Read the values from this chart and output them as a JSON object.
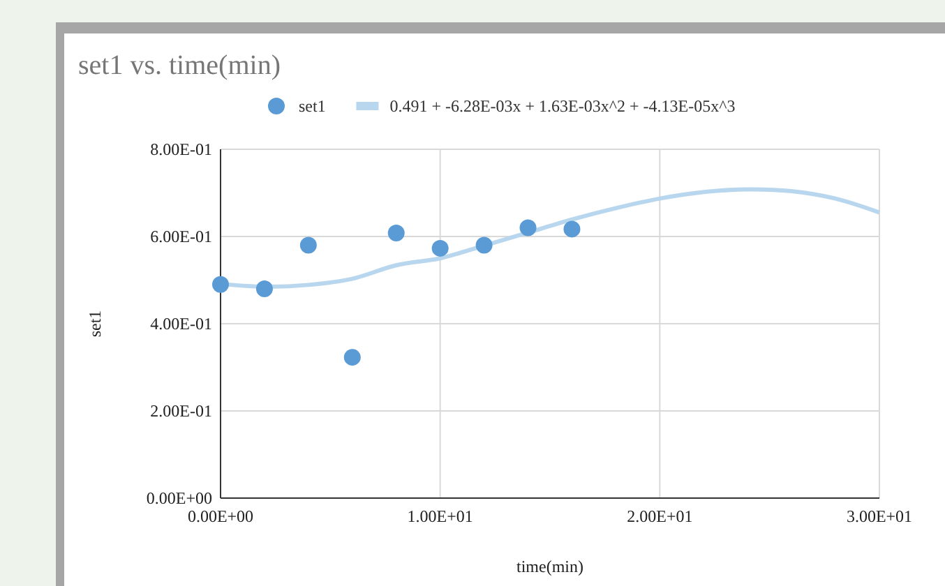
{
  "chart_data": {
    "type": "scatter",
    "title": "set1 vs. time(min)",
    "xlabel": "time(min)",
    "ylabel": "set1",
    "x": [
      0,
      2,
      4,
      6,
      8,
      10,
      12,
      14,
      16
    ],
    "series": [
      {
        "name": "set1",
        "marker": "circle",
        "color": "#5b9bd5",
        "values": [
          0.49,
          0.48,
          0.58,
          0.323,
          0.608,
          0.573,
          0.58,
          0.62,
          0.617
        ]
      },
      {
        "name": "0.491 + -6.28E-03x + 1.63E-03x^2 + -4.13E-05x^3",
        "type": "line",
        "color": "#b8d7ee",
        "x": [
          0,
          2,
          4,
          6,
          8,
          10,
          12,
          14,
          16,
          18,
          20,
          22,
          24,
          26,
          28,
          30
        ],
        "values": [
          0.491,
          0.485,
          0.489,
          0.503,
          0.534,
          0.55,
          0.579,
          0.609,
          0.639,
          0.665,
          0.687,
          0.702,
          0.708,
          0.704,
          0.687,
          0.655
        ]
      }
    ],
    "xlim": [
      0,
      30
    ],
    "xticks": [
      {
        "value": 0,
        "label": "0.00E+00"
      },
      {
        "value": 10,
        "label": "1.00E+01"
      },
      {
        "value": 20,
        "label": "2.00E+01"
      },
      {
        "value": 30,
        "label": "3.00E+01"
      }
    ],
    "ylim": [
      0,
      0.8
    ],
    "yticks": [
      {
        "value": 0,
        "label": "0.00E+00"
      },
      {
        "value": 0.2,
        "label": "2.00E-01"
      },
      {
        "value": 0.4,
        "label": "4.00E-01"
      },
      {
        "value": 0.6,
        "label": "6.00E-01"
      },
      {
        "value": 0.8,
        "label": "8.00E-01"
      }
    ],
    "grid": true,
    "legend": "top"
  }
}
